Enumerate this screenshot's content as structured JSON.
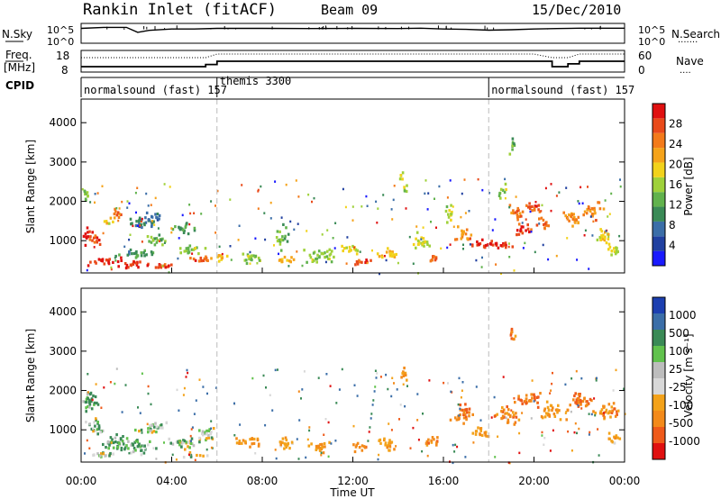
{
  "header": {
    "station": "Rankin Inlet (fitACF)",
    "beam": "Beam 09",
    "date": "15/Dec/2010"
  },
  "noise_panel": {
    "left_label": "N.Sky",
    "right_label": "N.Search",
    "left_ticks": [
      "10^5",
      "10^0"
    ],
    "right_ticks": [
      "10^5",
      "10^0"
    ]
  },
  "freq_panel": {
    "left_label_1": "Freq.",
    "left_label_2": "[MHz]",
    "right_label": "Nave",
    "left_ticks": [
      "18",
      "8"
    ],
    "right_ticks": [
      "60",
      "0"
    ]
  },
  "cpid": {
    "label": "CPID",
    "segments": [
      {
        "name": "normalsound (fast)",
        "code": "157",
        "start_h": 0,
        "end_h": 6
      },
      {
        "name": "themis",
        "code": "3300",
        "start_h": 6,
        "end_h": 18
      },
      {
        "name": "normalsound (fast)",
        "code": "157",
        "start_h": 18,
        "end_h": 24
      }
    ]
  },
  "x_axis": {
    "label": "Time UT",
    "tick_labels": [
      "00:00",
      "04:00",
      "08:00",
      "12:00",
      "16:00",
      "20:00",
      "00:00"
    ],
    "range_h": [
      0,
      24
    ]
  },
  "power_panel": {
    "ylabel": "Slant Range [km]",
    "yticks": [
      "1000",
      "2000",
      "3000",
      "4000"
    ],
    "colorbar_label": "Power [dB]",
    "colorbar_ticks": [
      "4",
      "8",
      "12",
      "16",
      "20",
      "24",
      "28"
    ]
  },
  "velocity_panel": {
    "ylabel": "Slant Range [km]",
    "yticks": [
      "1000",
      "2000",
      "3000",
      "4000"
    ],
    "colorbar_label": "Velocity [m s⁻¹]",
    "colorbar_ticks": [
      "1000",
      "500",
      "100",
      "25",
      "-25",
      "-100",
      "-500",
      "-1000"
    ]
  },
  "colors": {
    "power_scale": [
      "#1a1aff",
      "#2040a0",
      "#3b6ea8",
      "#3a8a56",
      "#61b24d",
      "#9fd13a",
      "#f2d21b",
      "#f5a31a",
      "#f37a1a",
      "#e94a1a",
      "#e01010"
    ],
    "velocity_scale": [
      "#1c3fb0",
      "#3b6ea8",
      "#3a8a56",
      "#61c24d",
      "#bdbdbd",
      "#d8d8d8",
      "#f3a21a",
      "#f38a1a",
      "#ef5a1a",
      "#e01010"
    ]
  },
  "chart_data": [
    {
      "type": "line",
      "title": "N.Sky / N.Search",
      "x_h": [
        0,
        1,
        2,
        2.5,
        3,
        4,
        5,
        6,
        8,
        10,
        12,
        14,
        15,
        16,
        17,
        18,
        19,
        20,
        21,
        22,
        23,
        24
      ],
      "series": [
        {
          "name": "N.Sky",
          "values": [
            0.75,
            0.8,
            0.8,
            0.55,
            0.65,
            0.72,
            0.72,
            0.75,
            0.75,
            0.74,
            0.75,
            0.74,
            0.76,
            0.72,
            0.7,
            0.66,
            0.68,
            0.72,
            0.74,
            0.76,
            0.76,
            0.76
          ]
        }
      ]
    },
    {
      "type": "line",
      "title": "Freq. / Nave",
      "x_h": [
        0,
        1,
        2,
        3,
        4,
        5,
        5.5,
        6,
        8,
        12,
        16,
        18,
        20,
        20.8,
        21.5,
        22,
        24
      ],
      "series": [
        {
          "name": "Freq.",
          "values": [
            10.5,
            10.5,
            10.5,
            10.5,
            10.5,
            10.5,
            11.5,
            13,
            13,
            13,
            13,
            13,
            13,
            10.5,
            11.8,
            13,
            13
          ]
        },
        {
          "name": "Nave",
          "values": [
            40,
            40,
            40,
            40,
            40,
            40,
            40,
            50,
            50,
            50,
            50,
            50,
            50,
            40,
            40,
            50,
            50
          ]
        }
      ]
    },
    {
      "type": "heatmap",
      "title": "Power [dB]",
      "xlabel": "Time UT",
      "ylabel": "Slant Range [km]",
      "xlim_h": [
        0,
        24
      ],
      "ylim_km": [
        180,
        4600
      ],
      "zlim": [
        0,
        30
      ],
      "blobs": [
        {
          "t": 0.3,
          "r": 1150,
          "dt": 0.35,
          "dr": 250,
          "v": 28
        },
        {
          "t": 0.6,
          "r": 1050,
          "dt": 0.45,
          "dr": 200,
          "v": 26
        },
        {
          "t": 0.2,
          "r": 2200,
          "dt": 0.25,
          "dr": 300,
          "v": 14
        },
        {
          "t": 1.2,
          "r": 1550,
          "dt": 0.3,
          "dr": 180,
          "v": 18
        },
        {
          "t": 1.6,
          "r": 1750,
          "dt": 0.35,
          "dr": 180,
          "v": 24
        },
        {
          "t": 2.5,
          "r": 700,
          "dt": 1.2,
          "dr": 150,
          "v": 10
        },
        {
          "t": 2.8,
          "r": 1550,
          "dt": 1.2,
          "dr": 250,
          "v": 8
        },
        {
          "t": 3.2,
          "r": 1050,
          "dt": 0.8,
          "dr": 180,
          "v": 12
        },
        {
          "t": 1.0,
          "r": 500,
          "dt": 1.0,
          "dr": 160,
          "v": 28
        },
        {
          "t": 2.2,
          "r": 420,
          "dt": 1.0,
          "dr": 140,
          "v": 27
        },
        {
          "t": 3.4,
          "r": 380,
          "dt": 0.8,
          "dr": 130,
          "v": 26
        },
        {
          "t": 4.5,
          "r": 1350,
          "dt": 0.7,
          "dr": 200,
          "v": 10
        },
        {
          "t": 4.8,
          "r": 800,
          "dt": 0.9,
          "dr": 150,
          "v": 14
        },
        {
          "t": 5.2,
          "r": 550,
          "dt": 0.8,
          "dr": 120,
          "v": 25
        },
        {
          "t": 6.2,
          "r": 600,
          "dt": 0.6,
          "dr": 140,
          "v": 20
        },
        {
          "t": 7.5,
          "r": 600,
          "dt": 0.8,
          "dr": 200,
          "v": 14
        },
        {
          "t": 8.8,
          "r": 1100,
          "dt": 0.4,
          "dr": 400,
          "v": 12
        },
        {
          "t": 9.0,
          "r": 550,
          "dt": 0.6,
          "dr": 150,
          "v": 20
        },
        {
          "t": 10.5,
          "r": 650,
          "dt": 1.0,
          "dr": 250,
          "v": 14
        },
        {
          "t": 12.3,
          "r": 500,
          "dt": 0.6,
          "dr": 150,
          "v": 26
        },
        {
          "t": 11.8,
          "r": 800,
          "dt": 0.5,
          "dr": 250,
          "v": 18
        },
        {
          "t": 13.5,
          "r": 700,
          "dt": 0.6,
          "dr": 250,
          "v": 20
        },
        {
          "t": 14.1,
          "r": 2700,
          "dt": 0.15,
          "dr": 250,
          "v": 16
        },
        {
          "t": 14.3,
          "r": 2300,
          "dt": 0.2,
          "dr": 200,
          "v": 14
        },
        {
          "t": 15.0,
          "r": 1000,
          "dt": 0.6,
          "dr": 300,
          "v": 16
        },
        {
          "t": 15.5,
          "r": 550,
          "dt": 0.5,
          "dr": 150,
          "v": 25
        },
        {
          "t": 16.2,
          "r": 1700,
          "dt": 0.3,
          "dr": 350,
          "v": 16
        },
        {
          "t": 16.8,
          "r": 1200,
          "dt": 0.6,
          "dr": 250,
          "v": 22
        },
        {
          "t": 17.6,
          "r": 900,
          "dt": 0.6,
          "dr": 180,
          "v": 28
        },
        {
          "t": 18.5,
          "r": 950,
          "dt": 0.7,
          "dr": 200,
          "v": 28
        },
        {
          "t": 19.2,
          "r": 1800,
          "dt": 0.5,
          "dr": 250,
          "v": 24
        },
        {
          "t": 19.4,
          "r": 1300,
          "dt": 0.6,
          "dr": 200,
          "v": 26
        },
        {
          "t": 20.0,
          "r": 1900,
          "dt": 0.5,
          "dr": 200,
          "v": 26
        },
        {
          "t": 20.3,
          "r": 1500,
          "dt": 0.5,
          "dr": 180,
          "v": 24
        },
        {
          "t": 21.6,
          "r": 1600,
          "dt": 0.6,
          "dr": 300,
          "v": 22
        },
        {
          "t": 22.5,
          "r": 1800,
          "dt": 0.6,
          "dr": 300,
          "v": 22
        },
        {
          "t": 23.0,
          "r": 1150,
          "dt": 0.5,
          "dr": 300,
          "v": 18
        },
        {
          "t": 23.5,
          "r": 800,
          "dt": 0.5,
          "dr": 200,
          "v": 16
        },
        {
          "t": 19.0,
          "r": 3400,
          "dt": 0.25,
          "dr": 300,
          "v": 12
        },
        {
          "t": 18.6,
          "r": 2300,
          "dt": 0.3,
          "dr": 250,
          "v": 14
        }
      ]
    },
    {
      "type": "heatmap",
      "title": "Velocity [m s⁻¹]",
      "xlabel": "Time UT",
      "ylabel": "Slant Range [km]",
      "xlim_h": [
        0,
        24
      ],
      "ylim_km": [
        180,
        4600
      ],
      "zlim": [
        -1000,
        1000
      ],
      "blobs": [
        {
          "t": 0.3,
          "r": 1800,
          "dt": 0.5,
          "dr": 500,
          "v": 150
        },
        {
          "t": 0.6,
          "r": 1100,
          "dt": 0.6,
          "dr": 300,
          "v": 30
        },
        {
          "t": 1.5,
          "r": 700,
          "dt": 1.0,
          "dr": 300,
          "v": 150
        },
        {
          "t": 2.5,
          "r": 600,
          "dt": 1.0,
          "dr": 250,
          "v": 120
        },
        {
          "t": 3.2,
          "r": 1100,
          "dt": 1.0,
          "dr": 200,
          "v": 20
        },
        {
          "t": 4.5,
          "r": 700,
          "dt": 1.0,
          "dr": 250,
          "v": 10
        },
        {
          "t": 5.5,
          "r": 900,
          "dt": 0.6,
          "dr": 300,
          "v": 0
        },
        {
          "t": 7.3,
          "r": 700,
          "dt": 0.8,
          "dr": 200,
          "v": -300
        },
        {
          "t": 9.0,
          "r": 700,
          "dt": 0.6,
          "dr": 250,
          "v": -200
        },
        {
          "t": 10.5,
          "r": 600,
          "dt": 0.8,
          "dr": 200,
          "v": -300
        },
        {
          "t": 12.3,
          "r": 600,
          "dt": 0.6,
          "dr": 150,
          "v": -400
        },
        {
          "t": 13.5,
          "r": 700,
          "dt": 0.6,
          "dr": 250,
          "v": -300
        },
        {
          "t": 14.2,
          "r": 2500,
          "dt": 0.2,
          "dr": 350,
          "v": -300
        },
        {
          "t": 15.5,
          "r": 700,
          "dt": 0.6,
          "dr": 200,
          "v": -400
        },
        {
          "t": 16.8,
          "r": 1400,
          "dt": 0.6,
          "dr": 400,
          "v": -500
        },
        {
          "t": 17.6,
          "r": 1000,
          "dt": 0.5,
          "dr": 250,
          "v": -300
        },
        {
          "t": 18.8,
          "r": 1400,
          "dt": 0.8,
          "dr": 300,
          "v": -400
        },
        {
          "t": 19.8,
          "r": 1800,
          "dt": 0.8,
          "dr": 300,
          "v": -500
        },
        {
          "t": 20.8,
          "r": 1500,
          "dt": 0.8,
          "dr": 300,
          "v": -300
        },
        {
          "t": 22.0,
          "r": 1800,
          "dt": 0.8,
          "dr": 350,
          "v": -500
        },
        {
          "t": 23.2,
          "r": 1500,
          "dt": 0.8,
          "dr": 300,
          "v": -400
        },
        {
          "t": 23.5,
          "r": 800,
          "dt": 0.5,
          "dr": 200,
          "v": -200
        },
        {
          "t": 19.0,
          "r": 3400,
          "dt": 0.25,
          "dr": 300,
          "v": -400
        },
        {
          "t": 1.0,
          "r": 400,
          "dt": 1.0,
          "dr": 120,
          "v": 10
        },
        {
          "t": 5.0,
          "r": 400,
          "dt": 0.8,
          "dr": 100,
          "v": 0
        }
      ]
    }
  ]
}
